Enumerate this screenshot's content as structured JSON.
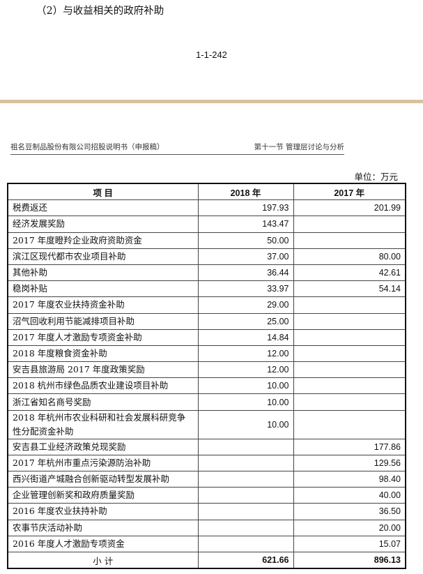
{
  "heading": "（2）与收益相关的政府补助",
  "page_number": "1-1-242",
  "doc_header": {
    "left": "祖名豆制品股份有限公司招股说明书（申报稿）",
    "right": "第十一节 管理层讨论与分析"
  },
  "unit": "单位：万元",
  "table": {
    "headers": [
      "项  目",
      "2018 年",
      "2017 年"
    ],
    "rows": [
      [
        "税费返还",
        "197.93",
        "201.99"
      ],
      [
        "经济发展奖励",
        "143.47",
        ""
      ],
      [
        "2017 年度瞪羚企业政府资助资金",
        "50.00",
        ""
      ],
      [
        "滨江区现代都市农业项目补助",
        "37.00",
        "80.00"
      ],
      [
        "其他补助",
        "36.44",
        "42.61"
      ],
      [
        "稳岗补贴",
        "33.97",
        "54.14"
      ],
      [
        "2017 年度农业扶持资金补助",
        "29.00",
        ""
      ],
      [
        "沼气回收利用节能减排项目补助",
        "25.00",
        ""
      ],
      [
        "2017 年度人才激励专项资金补助",
        "14.84",
        ""
      ],
      [
        "2018 年度粮食资金补助",
        "12.00",
        ""
      ],
      [
        "安吉县旅游局 2017 年度政策奖励",
        "12.00",
        ""
      ],
      [
        "2018 杭州市绿色品质农业建设项目补助",
        "10.00",
        ""
      ],
      [
        "浙江省知名商号奖励",
        "10.00",
        ""
      ],
      [
        "2018 年杭州市农业科研和社会发展科研竞争性分配资金补助",
        "10.00",
        ""
      ],
      [
        "安吉县工业经济政策兑现奖励",
        "",
        "177.86"
      ],
      [
        "2017 年杭州市重点污染源防治补助",
        "",
        "129.56"
      ],
      [
        "西兴街道产城融合创新驱动转型发展补助",
        "",
        "98.40"
      ],
      [
        "企业管理创新奖和政府质量奖励",
        "",
        "40.00"
      ],
      [
        "2016 年度农业扶持补助",
        "",
        "36.50"
      ],
      [
        "农事节庆活动补助",
        "",
        "20.00"
      ],
      [
        "2016 年度人才激励专项资金",
        "",
        "15.07"
      ]
    ],
    "total": [
      "小  计",
      "621.66",
      "896.13"
    ]
  },
  "colors": {
    "separator_band": "#d8c29e"
  }
}
